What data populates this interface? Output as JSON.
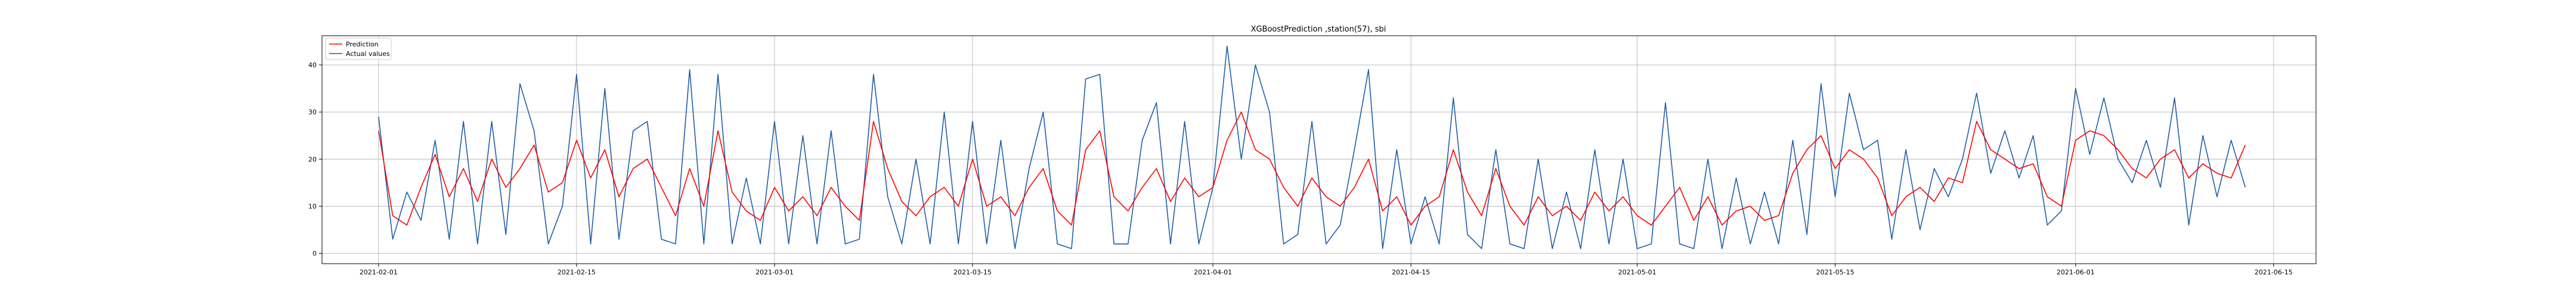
{
  "chart_data": {
    "type": "line",
    "title": "XGBoostPrediction ,station(57), sbi",
    "xlabel": "",
    "ylabel": "",
    "x_start": "2021-01-28",
    "x_end": "2021-06-18",
    "ylim": [
      -2.2,
      46.2
    ],
    "grid": true,
    "legend_position": "top-left",
    "x_ticks": [
      {
        "date": "2021-02-01",
        "label": "2021-02-01"
      },
      {
        "date": "2021-02-15",
        "label": "2021-02-15"
      },
      {
        "date": "2021-03-01",
        "label": "2021-03-01"
      },
      {
        "date": "2021-03-15",
        "label": "2021-03-15"
      },
      {
        "date": "2021-04-01",
        "label": "2021-04-01"
      },
      {
        "date": "2021-04-15",
        "label": "2021-04-15"
      },
      {
        "date": "2021-05-01",
        "label": "2021-05-01"
      },
      {
        "date": "2021-05-15",
        "label": "2021-05-15"
      },
      {
        "date": "2021-06-01",
        "label": "2021-06-01"
      },
      {
        "date": "2021-06-15",
        "label": "2021-06-15"
      }
    ],
    "y_ticks": [
      {
        "value": 0,
        "label": "0"
      },
      {
        "value": 10,
        "label": "10"
      },
      {
        "value": 20,
        "label": "20"
      },
      {
        "value": 30,
        "label": "30"
      },
      {
        "value": 40,
        "label": "40"
      }
    ],
    "series": [
      {
        "name": "Prediction",
        "color": "#ff0000",
        "points": [
          [
            "2021-02-01",
            26
          ],
          [
            "2021-02-02",
            8
          ],
          [
            "2021-02-03",
            6
          ],
          [
            "2021-02-04",
            14
          ],
          [
            "2021-02-05",
            21
          ],
          [
            "2021-02-06",
            12
          ],
          [
            "2021-02-07",
            18
          ],
          [
            "2021-02-08",
            11
          ],
          [
            "2021-02-09",
            20
          ],
          [
            "2021-02-10",
            14
          ],
          [
            "2021-02-11",
            18
          ],
          [
            "2021-02-12",
            23
          ],
          [
            "2021-02-13",
            13
          ],
          [
            "2021-02-14",
            15
          ],
          [
            "2021-02-15",
            24
          ],
          [
            "2021-02-16",
            16
          ],
          [
            "2021-02-17",
            22
          ],
          [
            "2021-02-18",
            12
          ],
          [
            "2021-02-19",
            18
          ],
          [
            "2021-02-20",
            20
          ],
          [
            "2021-02-21",
            14
          ],
          [
            "2021-02-22",
            8
          ],
          [
            "2021-02-23",
            18
          ],
          [
            "2021-02-24",
            10
          ],
          [
            "2021-02-25",
            26
          ],
          [
            "2021-02-26",
            13
          ],
          [
            "2021-02-27",
            9
          ],
          [
            "2021-02-28",
            7
          ],
          [
            "2021-03-01",
            14
          ],
          [
            "2021-03-02",
            9
          ],
          [
            "2021-03-03",
            12
          ],
          [
            "2021-03-04",
            8
          ],
          [
            "2021-03-05",
            14
          ],
          [
            "2021-03-06",
            10
          ],
          [
            "2021-03-07",
            7
          ],
          [
            "2021-03-08",
            28
          ],
          [
            "2021-03-09",
            18
          ],
          [
            "2021-03-10",
            11
          ],
          [
            "2021-03-11",
            8
          ],
          [
            "2021-03-12",
            12
          ],
          [
            "2021-03-13",
            14
          ],
          [
            "2021-03-14",
            10
          ],
          [
            "2021-03-15",
            20
          ],
          [
            "2021-03-16",
            10
          ],
          [
            "2021-03-17",
            12
          ],
          [
            "2021-03-18",
            8
          ],
          [
            "2021-03-19",
            14
          ],
          [
            "2021-03-20",
            18
          ],
          [
            "2021-03-21",
            9
          ],
          [
            "2021-03-22",
            6
          ],
          [
            "2021-03-23",
            22
          ],
          [
            "2021-03-24",
            26
          ],
          [
            "2021-03-25",
            12
          ],
          [
            "2021-03-26",
            9
          ],
          [
            "2021-03-27",
            14
          ],
          [
            "2021-03-28",
            18
          ],
          [
            "2021-03-29",
            11
          ],
          [
            "2021-03-30",
            16
          ],
          [
            "2021-03-31",
            12
          ],
          [
            "2021-04-01",
            14
          ],
          [
            "2021-04-02",
            24
          ],
          [
            "2021-04-03",
            30
          ],
          [
            "2021-04-04",
            22
          ],
          [
            "2021-04-05",
            20
          ],
          [
            "2021-04-06",
            14
          ],
          [
            "2021-04-07",
            10
          ],
          [
            "2021-04-08",
            16
          ],
          [
            "2021-04-09",
            12
          ],
          [
            "2021-04-10",
            10
          ],
          [
            "2021-04-11",
            14
          ],
          [
            "2021-04-12",
            20
          ],
          [
            "2021-04-13",
            9
          ],
          [
            "2021-04-14",
            12
          ],
          [
            "2021-04-15",
            6
          ],
          [
            "2021-04-16",
            10
          ],
          [
            "2021-04-17",
            12
          ],
          [
            "2021-04-18",
            22
          ],
          [
            "2021-04-19",
            13
          ],
          [
            "2021-04-20",
            8
          ],
          [
            "2021-04-21",
            18
          ],
          [
            "2021-04-22",
            10
          ],
          [
            "2021-04-23",
            6
          ],
          [
            "2021-04-24",
            12
          ],
          [
            "2021-04-25",
            8
          ],
          [
            "2021-04-26",
            10
          ],
          [
            "2021-04-27",
            7
          ],
          [
            "2021-04-28",
            13
          ],
          [
            "2021-04-29",
            9
          ],
          [
            "2021-04-30",
            12
          ],
          [
            "2021-05-01",
            8
          ],
          [
            "2021-05-02",
            6
          ],
          [
            "2021-05-03",
            10
          ],
          [
            "2021-05-04",
            14
          ],
          [
            "2021-05-05",
            7
          ],
          [
            "2021-05-06",
            12
          ],
          [
            "2021-05-07",
            6
          ],
          [
            "2021-05-08",
            9
          ],
          [
            "2021-05-09",
            10
          ],
          [
            "2021-05-10",
            7
          ],
          [
            "2021-05-11",
            8
          ],
          [
            "2021-05-12",
            17
          ],
          [
            "2021-05-13",
            22
          ],
          [
            "2021-05-14",
            25
          ],
          [
            "2021-05-15",
            18
          ],
          [
            "2021-05-16",
            22
          ],
          [
            "2021-05-17",
            20
          ],
          [
            "2021-05-18",
            16
          ],
          [
            "2021-05-19",
            8
          ],
          [
            "2021-05-20",
            12
          ],
          [
            "2021-05-21",
            14
          ],
          [
            "2021-05-22",
            11
          ],
          [
            "2021-05-23",
            16
          ],
          [
            "2021-05-24",
            15
          ],
          [
            "2021-05-25",
            28
          ],
          [
            "2021-05-26",
            22
          ],
          [
            "2021-05-27",
            20
          ],
          [
            "2021-05-28",
            18
          ],
          [
            "2021-05-29",
            19
          ],
          [
            "2021-05-30",
            12
          ],
          [
            "2021-05-31",
            10
          ],
          [
            "2021-06-01",
            24
          ],
          [
            "2021-06-02",
            26
          ],
          [
            "2021-06-03",
            25
          ],
          [
            "2021-06-04",
            22
          ],
          [
            "2021-06-05",
            18
          ],
          [
            "2021-06-06",
            16
          ],
          [
            "2021-06-07",
            20
          ],
          [
            "2021-06-08",
            22
          ],
          [
            "2021-06-09",
            16
          ],
          [
            "2021-06-10",
            19
          ],
          [
            "2021-06-11",
            17
          ],
          [
            "2021-06-12",
            16
          ],
          [
            "2021-06-13",
            23
          ]
        ]
      },
      {
        "name": "Actual values",
        "color": "#1f5fa8",
        "points": [
          [
            "2021-02-01",
            29
          ],
          [
            "2021-02-02",
            3
          ],
          [
            "2021-02-03",
            13
          ],
          [
            "2021-02-04",
            7
          ],
          [
            "2021-02-05",
            24
          ],
          [
            "2021-02-06",
            3
          ],
          [
            "2021-02-07",
            28
          ],
          [
            "2021-02-08",
            2
          ],
          [
            "2021-02-09",
            28
          ],
          [
            "2021-02-10",
            4
          ],
          [
            "2021-02-11",
            36
          ],
          [
            "2021-02-12",
            26
          ],
          [
            "2021-02-13",
            2
          ],
          [
            "2021-02-14",
            10
          ],
          [
            "2021-02-15",
            38
          ],
          [
            "2021-02-16",
            2
          ],
          [
            "2021-02-17",
            35
          ],
          [
            "2021-02-18",
            3
          ],
          [
            "2021-02-19",
            26
          ],
          [
            "2021-02-20",
            28
          ],
          [
            "2021-02-21",
            3
          ],
          [
            "2021-02-22",
            2
          ],
          [
            "2021-02-23",
            39
          ],
          [
            "2021-02-24",
            2
          ],
          [
            "2021-02-25",
            38
          ],
          [
            "2021-02-26",
            2
          ],
          [
            "2021-02-27",
            16
          ],
          [
            "2021-02-28",
            2
          ],
          [
            "2021-03-01",
            28
          ],
          [
            "2021-03-02",
            2
          ],
          [
            "2021-03-03",
            25
          ],
          [
            "2021-03-04",
            2
          ],
          [
            "2021-03-05",
            26
          ],
          [
            "2021-03-06",
            2
          ],
          [
            "2021-03-07",
            3
          ],
          [
            "2021-03-08",
            38
          ],
          [
            "2021-03-09",
            12
          ],
          [
            "2021-03-10",
            2
          ],
          [
            "2021-03-11",
            20
          ],
          [
            "2021-03-12",
            2
          ],
          [
            "2021-03-13",
            30
          ],
          [
            "2021-03-14",
            2
          ],
          [
            "2021-03-15",
            28
          ],
          [
            "2021-03-16",
            2
          ],
          [
            "2021-03-17",
            24
          ],
          [
            "2021-03-18",
            1
          ],
          [
            "2021-03-19",
            18
          ],
          [
            "2021-03-20",
            30
          ],
          [
            "2021-03-21",
            2
          ],
          [
            "2021-03-22",
            1
          ],
          [
            "2021-03-23",
            37
          ],
          [
            "2021-03-24",
            38
          ],
          [
            "2021-03-25",
            2
          ],
          [
            "2021-03-26",
            2
          ],
          [
            "2021-03-27",
            24
          ],
          [
            "2021-03-28",
            32
          ],
          [
            "2021-03-29",
            2
          ],
          [
            "2021-03-30",
            28
          ],
          [
            "2021-03-31",
            2
          ],
          [
            "2021-04-01",
            14
          ],
          [
            "2021-04-02",
            44
          ],
          [
            "2021-04-03",
            20
          ],
          [
            "2021-04-04",
            40
          ],
          [
            "2021-04-05",
            30
          ],
          [
            "2021-04-06",
            2
          ],
          [
            "2021-04-07",
            4
          ],
          [
            "2021-04-08",
            28
          ],
          [
            "2021-04-09",
            2
          ],
          [
            "2021-04-10",
            6
          ],
          [
            "2021-04-11",
            22
          ],
          [
            "2021-04-12",
            39
          ],
          [
            "2021-04-13",
            1
          ],
          [
            "2021-04-14",
            22
          ],
          [
            "2021-04-15",
            2
          ],
          [
            "2021-04-16",
            12
          ],
          [
            "2021-04-17",
            2
          ],
          [
            "2021-04-18",
            33
          ],
          [
            "2021-04-19",
            4
          ],
          [
            "2021-04-20",
            1
          ],
          [
            "2021-04-21",
            22
          ],
          [
            "2021-04-22",
            2
          ],
          [
            "2021-04-23",
            1
          ],
          [
            "2021-04-24",
            20
          ],
          [
            "2021-04-25",
            1
          ],
          [
            "2021-04-26",
            13
          ],
          [
            "2021-04-27",
            1
          ],
          [
            "2021-04-28",
            22
          ],
          [
            "2021-04-29",
            2
          ],
          [
            "2021-04-30",
            20
          ],
          [
            "2021-05-01",
            1
          ],
          [
            "2021-05-02",
            2
          ],
          [
            "2021-05-03",
            32
          ],
          [
            "2021-05-04",
            2
          ],
          [
            "2021-05-05",
            1
          ],
          [
            "2021-05-06",
            20
          ],
          [
            "2021-05-07",
            1
          ],
          [
            "2021-05-08",
            16
          ],
          [
            "2021-05-09",
            2
          ],
          [
            "2021-05-10",
            13
          ],
          [
            "2021-05-11",
            2
          ],
          [
            "2021-05-12",
            24
          ],
          [
            "2021-05-13",
            4
          ],
          [
            "2021-05-14",
            36
          ],
          [
            "2021-05-15",
            12
          ],
          [
            "2021-05-16",
            34
          ],
          [
            "2021-05-17",
            22
          ],
          [
            "2021-05-18",
            24
          ],
          [
            "2021-05-19",
            3
          ],
          [
            "2021-05-20",
            22
          ],
          [
            "2021-05-21",
            5
          ],
          [
            "2021-05-22",
            18
          ],
          [
            "2021-05-23",
            12
          ],
          [
            "2021-05-24",
            20
          ],
          [
            "2021-05-25",
            34
          ],
          [
            "2021-05-26",
            17
          ],
          [
            "2021-05-27",
            26
          ],
          [
            "2021-05-28",
            16
          ],
          [
            "2021-05-29",
            25
          ],
          [
            "2021-05-30",
            6
          ],
          [
            "2021-05-31",
            9
          ],
          [
            "2021-06-01",
            35
          ],
          [
            "2021-06-02",
            21
          ],
          [
            "2021-06-03",
            33
          ],
          [
            "2021-06-04",
            20
          ],
          [
            "2021-06-05",
            15
          ],
          [
            "2021-06-06",
            24
          ],
          [
            "2021-06-07",
            14
          ],
          [
            "2021-06-08",
            33
          ],
          [
            "2021-06-09",
            6
          ],
          [
            "2021-06-10",
            25
          ],
          [
            "2021-06-11",
            12
          ],
          [
            "2021-06-12",
            24
          ],
          [
            "2021-06-13",
            14
          ]
        ]
      }
    ]
  }
}
